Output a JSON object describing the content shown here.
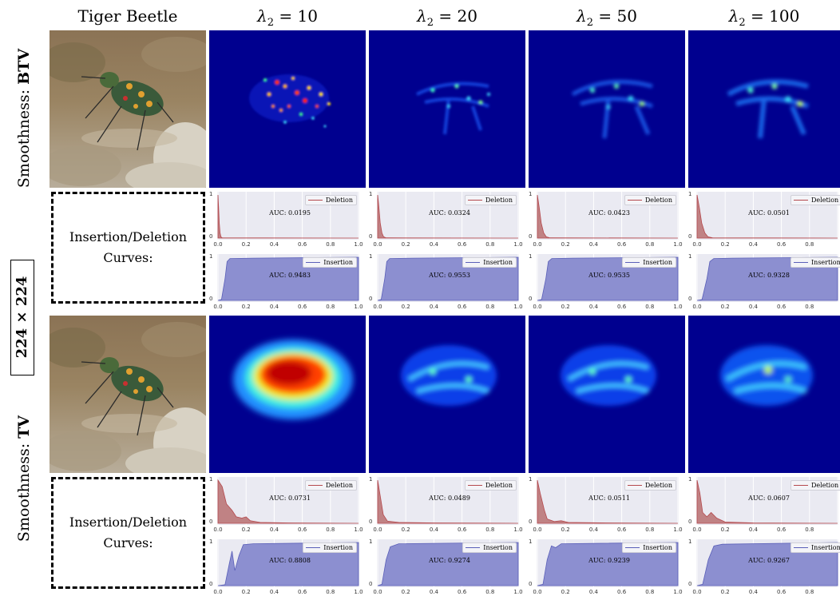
{
  "header": {
    "image_title": "Tiger Beetle",
    "lambda_prefix": "λ",
    "lambda_sub": "2",
    "lambdas": [
      "10",
      "20",
      "50",
      "100"
    ]
  },
  "rows": {
    "top_label_prefix": "Smoothness: ",
    "top_label_bold": "BTV",
    "bottom_label_prefix": "Smoothness: ",
    "bottom_label_bold": "TV",
    "resolution": "224 × 224",
    "curves_box_line1": "Insertion/Deletion",
    "curves_box_line2": "Curves:"
  },
  "axes": {
    "x_ticks": [
      "0.0",
      "0.2",
      "0.4",
      "0.6",
      "0.8",
      "1.0"
    ],
    "y_top": "1",
    "y_bottom": "0",
    "deletion_legend": "Deletion",
    "insertion_legend": "Insertion"
  },
  "colors": {
    "deletion": "#b5494d",
    "deletion_fill": "#c08284",
    "insertion": "#5a5fb8",
    "insertion_fill": "#8c8fd0",
    "plot_bg": "#eaeaf2",
    "heatmap_bg": "#00008f"
  },
  "chart_data": [
    {
      "type": "area",
      "row": "BTV",
      "lambda": "10",
      "series": "Deletion",
      "auc": "AUC: 0.0195"
    },
    {
      "type": "area",
      "row": "BTV",
      "lambda": "10",
      "series": "Insertion",
      "auc": "AUC: 0.9483"
    },
    {
      "type": "area",
      "row": "BTV",
      "lambda": "20",
      "series": "Deletion",
      "auc": "AUC: 0.0324"
    },
    {
      "type": "area",
      "row": "BTV",
      "lambda": "20",
      "series": "Insertion",
      "auc": "AUC: 0.9553"
    },
    {
      "type": "area",
      "row": "BTV",
      "lambda": "50",
      "series": "Deletion",
      "auc": "AUC: 0.0423"
    },
    {
      "type": "area",
      "row": "BTV",
      "lambda": "50",
      "series": "Insertion",
      "auc": "AUC: 0.9535"
    },
    {
      "type": "area",
      "row": "BTV",
      "lambda": "100",
      "series": "Deletion",
      "auc": "AUC: 0.0501"
    },
    {
      "type": "area",
      "row": "BTV",
      "lambda": "100",
      "series": "Insertion",
      "auc": "AUC: 0.9328"
    },
    {
      "type": "area",
      "row": "TV",
      "lambda": "10",
      "series": "Deletion",
      "auc": "AUC: 0.0731"
    },
    {
      "type": "area",
      "row": "TV",
      "lambda": "10",
      "series": "Insertion",
      "auc": "AUC: 0.8808"
    },
    {
      "type": "area",
      "row": "TV",
      "lambda": "20",
      "series": "Deletion",
      "auc": "AUC: 0.0489"
    },
    {
      "type": "area",
      "row": "TV",
      "lambda": "20",
      "series": "Insertion",
      "auc": "AUC: 0.9274"
    },
    {
      "type": "area",
      "row": "TV",
      "lambda": "50",
      "series": "Deletion",
      "auc": "AUC: 0.0511"
    },
    {
      "type": "area",
      "row": "TV",
      "lambda": "50",
      "series": "Insertion",
      "auc": "AUC: 0.9239"
    },
    {
      "type": "area",
      "row": "TV",
      "lambda": "100",
      "series": "Deletion",
      "auc": "AUC: 0.0607"
    },
    {
      "type": "area",
      "row": "TV",
      "lambda": "100",
      "series": "Insertion",
      "auc": "AUC: 0.9267"
    }
  ]
}
